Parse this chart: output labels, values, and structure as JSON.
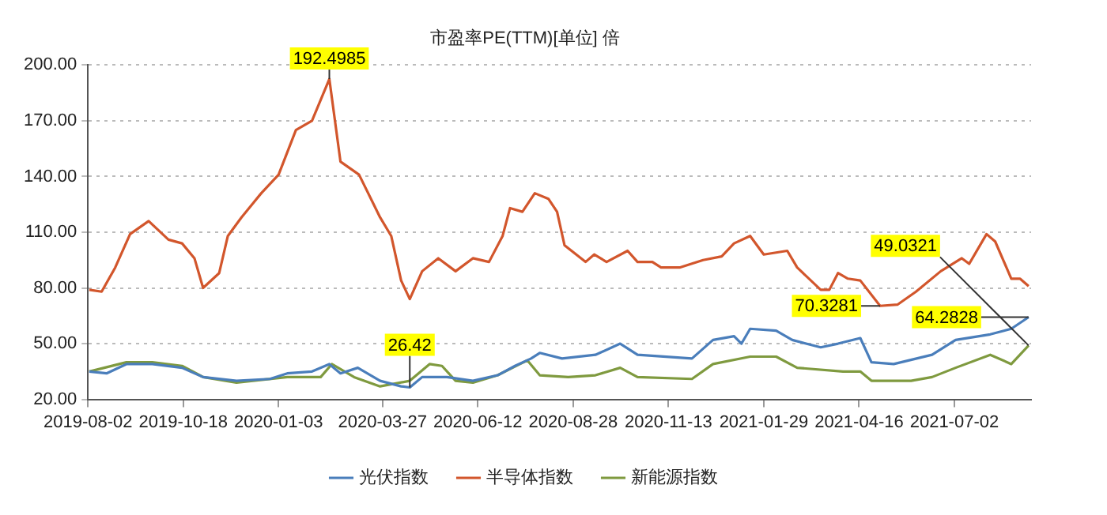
{
  "chart_data": {
    "type": "line",
    "title": "市盈率PE(TTM)[单位] 倍",
    "xlim": [
      "2019-08-02",
      "2021-09-02"
    ],
    "xticks": [
      {
        "value": "2019-08-02",
        "label": "2019-08-02"
      },
      {
        "value": "2019-10-18",
        "label": "2019-10-18"
      },
      {
        "value": "2020-01-03",
        "label": "2020-01-03"
      },
      {
        "value": "2020-03-27",
        "label": "2020-03-27"
      },
      {
        "value": "2020-06-12",
        "label": "2020-06-12"
      },
      {
        "value": "2020-08-28",
        "label": "2020-08-28"
      },
      {
        "value": "2020-11-13",
        "label": "2020-11-13"
      },
      {
        "value": "2021-01-29",
        "label": "2021-01-29"
      },
      {
        "value": "2021-04-16",
        "label": "2021-04-16"
      },
      {
        "value": "2021-07-02",
        "label": "2021-07-02"
      }
    ],
    "ylim": [
      20,
      200
    ],
    "yticks": [
      {
        "value": 20,
        "label": "20.00"
      },
      {
        "value": 50,
        "label": "50.00"
      },
      {
        "value": 80,
        "label": "80.00"
      },
      {
        "value": 110,
        "label": "110.00"
      },
      {
        "value": 140,
        "label": "140.00"
      },
      {
        "value": 170,
        "label": "170.00"
      },
      {
        "value": 200,
        "label": "200.00"
      }
    ],
    "grid": "y",
    "legend": "bottom",
    "marker": "none",
    "line_style": "solid",
    "series": [
      {
        "name": "光伏指数",
        "color": "#4a7ebb",
        "x": [
          "2019-08-03",
          "2019-08-17",
          "2019-09-02",
          "2019-09-23",
          "2019-10-17",
          "2019-11-03",
          "2019-11-30",
          "2019-12-27",
          "2020-01-10",
          "2020-01-30",
          "2020-02-13",
          "2020-02-22",
          "2020-03-07",
          "2020-03-25",
          "2020-04-11",
          "2020-04-18",
          "2020-04-28",
          "2020-05-18",
          "2020-06-08",
          "2020-06-28",
          "2020-07-12",
          "2020-07-25",
          "2020-08-01",
          "2020-08-19",
          "2020-09-15",
          "2020-10-05",
          "2020-10-19",
          "2020-12-02",
          "2020-12-19",
          "2021-01-05",
          "2021-01-11",
          "2021-01-18",
          "2021-02-08",
          "2021-02-21",
          "2021-03-16",
          "2021-03-30",
          "2021-04-17",
          "2021-04-26",
          "2021-05-14",
          "2021-06-14",
          "2021-07-03",
          "2021-07-31",
          "2021-08-17",
          "2021-08-31"
        ],
        "values": [
          35,
          34,
          39,
          39,
          37,
          32,
          30,
          31,
          34,
          35,
          39,
          34,
          37,
          30,
          27,
          26.42,
          32,
          32,
          30,
          33,
          38,
          42,
          45,
          42,
          44,
          50,
          44,
          42,
          52,
          54,
          50,
          58,
          57,
          52,
          48,
          50,
          53,
          40,
          39,
          44,
          52,
          55,
          58,
          64.2828
        ]
      },
      {
        "name": "半导体指数",
        "color": "#d2562c",
        "x": [
          "2019-08-03",
          "2019-08-13",
          "2019-08-24",
          "2019-09-05",
          "2019-09-20",
          "2019-10-06",
          "2019-10-17",
          "2019-10-27",
          "2019-11-03",
          "2019-11-16",
          "2019-11-23",
          "2019-12-04",
          "2019-12-20",
          "2020-01-03",
          "2020-01-17",
          "2020-01-30",
          "2020-02-13",
          "2020-02-22",
          "2020-03-08",
          "2020-03-25",
          "2020-04-03",
          "2020-04-11",
          "2020-04-18",
          "2020-04-28",
          "2020-05-11",
          "2020-05-25",
          "2020-06-08",
          "2020-06-21",
          "2020-07-02",
          "2020-07-08",
          "2020-07-18",
          "2020-07-28",
          "2020-08-08",
          "2020-08-15",
          "2020-08-21",
          "2020-09-07",
          "2020-09-14",
          "2020-09-24",
          "2020-10-11",
          "2020-10-19",
          "2020-10-31",
          "2020-11-07",
          "2020-11-22",
          "2020-12-11",
          "2020-12-26",
          "2021-01-05",
          "2021-01-18",
          "2021-01-29",
          "2021-02-17",
          "2021-02-25",
          "2021-03-16",
          "2021-03-23",
          "2021-03-30",
          "2021-04-07",
          "2021-04-17",
          "2021-05-03",
          "2021-05-17",
          "2021-06-01",
          "2021-06-21",
          "2021-07-08",
          "2021-07-14",
          "2021-07-28",
          "2021-08-04",
          "2021-08-17",
          "2021-08-24",
          "2021-08-31"
        ],
        "values": [
          79,
          78,
          91,
          109,
          116,
          106,
          104,
          96,
          80,
          88,
          108,
          118,
          131,
          141,
          165,
          170,
          192.4985,
          148,
          141,
          118,
          108,
          84,
          74,
          89,
          96,
          89,
          96,
          94,
          108,
          123,
          121,
          131,
          128,
          121,
          103,
          94,
          98,
          94,
          100,
          94,
          94,
          91,
          91,
          95,
          97,
          104,
          108,
          98,
          100,
          91,
          79,
          79,
          88,
          85,
          84,
          70.3281,
          71,
          78,
          89,
          96,
          93,
          109,
          105,
          85,
          85,
          81
        ]
      },
      {
        "name": "新能源指数",
        "color": "#7f9a3f",
        "x": [
          "2019-08-03",
          "2019-09-02",
          "2019-09-23",
          "2019-10-17",
          "2019-11-03",
          "2019-11-30",
          "2020-01-10",
          "2020-02-06",
          "2020-02-15",
          "2020-03-04",
          "2020-03-25",
          "2020-04-18",
          "2020-05-04",
          "2020-05-14",
          "2020-05-25",
          "2020-06-08",
          "2020-06-28",
          "2020-07-16",
          "2020-07-22",
          "2020-08-01",
          "2020-08-24",
          "2020-09-15",
          "2020-10-05",
          "2020-10-19",
          "2020-12-02",
          "2020-12-19",
          "2021-01-18",
          "2021-02-08",
          "2021-02-25",
          "2021-04-03",
          "2021-04-17",
          "2021-04-26",
          "2021-05-28",
          "2021-06-14",
          "2021-07-03",
          "2021-07-31",
          "2021-08-17",
          "2021-08-31"
        ],
        "values": [
          35,
          40,
          40,
          38,
          32,
          29,
          32,
          32,
          39,
          32,
          27,
          30,
          39,
          38,
          30,
          29,
          33,
          39,
          41,
          33,
          32,
          33,
          37,
          32,
          31,
          39,
          43,
          43,
          37,
          35,
          35,
          30,
          30,
          32,
          37,
          44,
          39,
          49.0321
        ]
      }
    ],
    "annotations": [
      {
        "text": "192.4985",
        "x": "2020-02-13",
        "y": 192.4985
      },
      {
        "text": "26.42",
        "x": "2020-04-18",
        "y": 26.42
      },
      {
        "text": "70.3281",
        "x": "2021-05-03",
        "y": 70.3281
      },
      {
        "text": "64.2828",
        "x": "2021-08-31",
        "y": 64.2828
      },
      {
        "text": "49.0321",
        "x": "2021-08-31",
        "y": 49.0321
      }
    ]
  }
}
